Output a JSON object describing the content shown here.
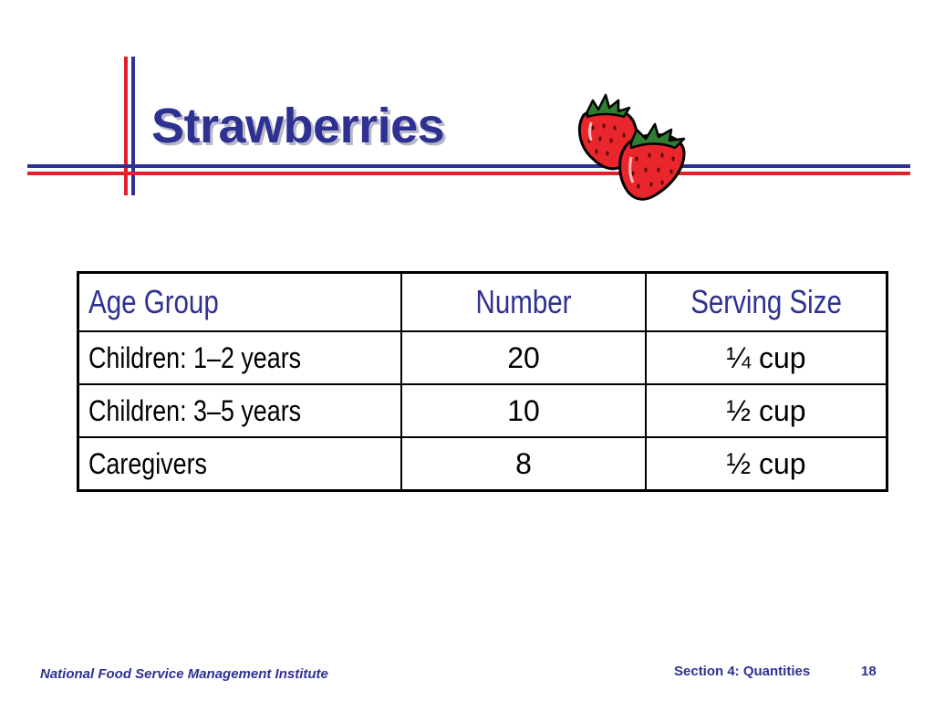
{
  "slide": {
    "title": "Strawberries",
    "illustration": "strawberries-clipart",
    "colors": {
      "title": "#2e3192",
      "accent_blue": "#2e3192",
      "accent_red": "#e0202a",
      "header_text": "#2e3192",
      "berry_red": "#e8262c",
      "leaf_green": "#2f7d32"
    }
  },
  "table": {
    "headers": {
      "age_group": "Age Group",
      "number": "Number",
      "serving_size": "Serving Size"
    },
    "rows": [
      {
        "age_group": "Children: 1–2 years",
        "number": "20",
        "serving_size": "¼ cup"
      },
      {
        "age_group": "Children: 3–5 years",
        "number": "10",
        "serving_size": "½ cup"
      },
      {
        "age_group": "Caregivers",
        "number": "8",
        "serving_size": "½ cup"
      }
    ]
  },
  "footer": {
    "organization": "National Food Service Management Institute",
    "section": "Section 4: Quantities",
    "page_number": "18"
  }
}
